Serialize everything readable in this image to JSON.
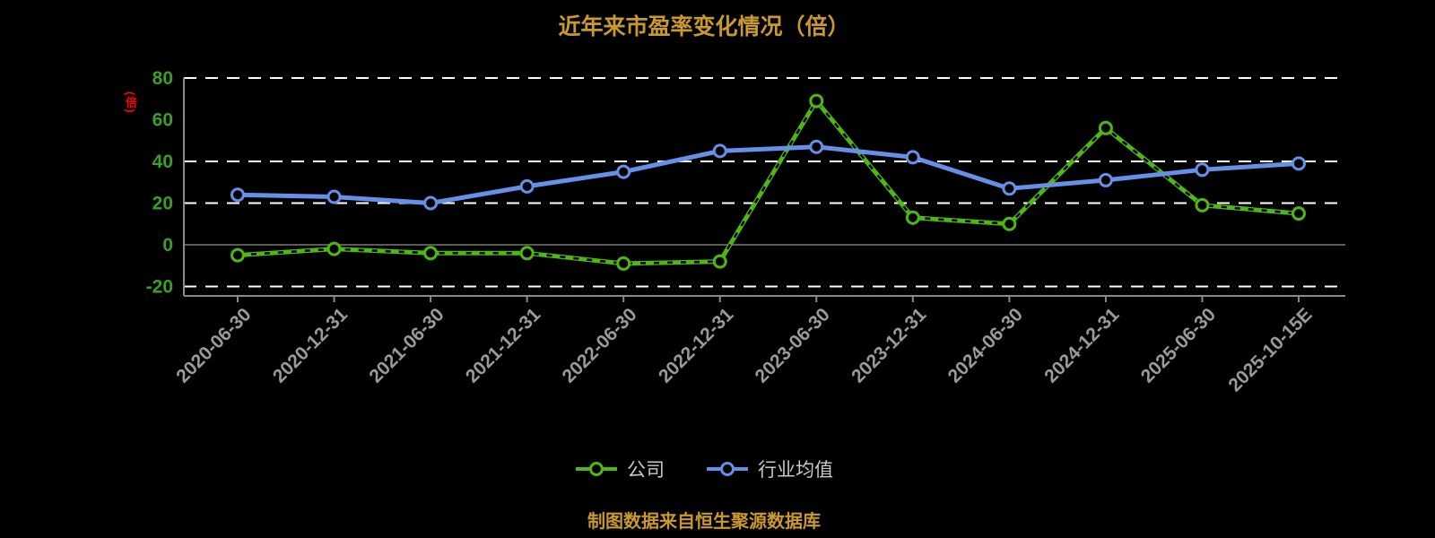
{
  "title": "近年来市盈率变化情况（倍）",
  "y_axis_unit_label": "(倍)",
  "footer": "制图数据来自恒生聚源数据库",
  "colors": {
    "background": "#000000",
    "title_text": "#c9992e",
    "footer_text": "#c9992e",
    "y_tick_label": "#3a9e2a",
    "x_tick_label": "#9a9a9a",
    "unit_label": "#ff0000",
    "gridline": "#ffffff",
    "axis": "#8a8a8a",
    "legend_text": "#c8c8c8"
  },
  "chart_data": {
    "type": "line",
    "title": "近年来市盈率变化情况（倍）",
    "xlabel": "",
    "ylabel": "(倍)",
    "categories": [
      "2020-06-30",
      "2020-12-31",
      "2021-06-30",
      "2021-12-31",
      "2022-06-30",
      "2022-12-31",
      "2023-06-30",
      "2023-12-31",
      "2024-06-30",
      "2024-12-31",
      "2025-06-30",
      "2025-10-15E"
    ],
    "series": [
      {
        "name": "公司",
        "color": "#4db814",
        "overlay_dash": true,
        "values": [
          -5,
          -2,
          -4,
          -4,
          -9,
          -8,
          69,
          13,
          10,
          56,
          19,
          15
        ]
      },
      {
        "name": "行业均值",
        "color": "#6690e8",
        "overlay_dash": false,
        "values": [
          24,
          23,
          20,
          28,
          35,
          45,
          47,
          42,
          27,
          31,
          36,
          39
        ]
      }
    ],
    "yticks": [
      80,
      60,
      40,
      20,
      0,
      -20
    ],
    "gridline_values": [
      80,
      40,
      20,
      -20
    ],
    "zero_line": 0,
    "ylim": [
      -25,
      80
    ],
    "grid": "dashed-horizontal",
    "x_tick_rotation": 45,
    "legend_position": "bottom"
  }
}
